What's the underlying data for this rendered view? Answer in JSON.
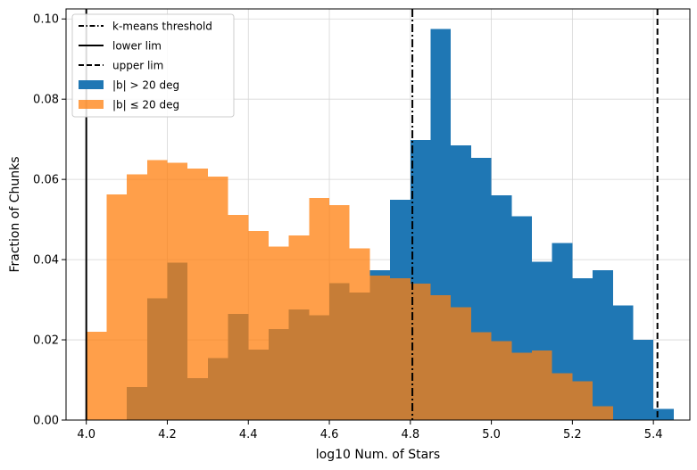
{
  "chart_data": {
    "type": "histogram",
    "title": "",
    "xlabel": "log10 Num. of Stars",
    "ylabel": "Fraction of Chunks",
    "xlim": [
      3.95,
      5.49
    ],
    "ylim": [
      0.0,
      0.1025
    ],
    "xticks": [
      4.0,
      4.2,
      4.4,
      4.6,
      4.8,
      5.0,
      5.2,
      5.4
    ],
    "xtick_labels": [
      "4.0",
      "4.2",
      "4.4",
      "4.6",
      "4.8",
      "5.0",
      "5.2",
      "5.4"
    ],
    "yticks": [
      0.0,
      0.02,
      0.04,
      0.06,
      0.08,
      0.1
    ],
    "ytick_labels": [
      "0.00",
      "0.02",
      "0.04",
      "0.06",
      "0.08",
      "0.10"
    ],
    "grid": true,
    "bin_width": 0.05,
    "series": [
      {
        "name": "|b| > 20 deg",
        "color": "#1f77b4",
        "alpha": 1.0,
        "bin_starts": [
          4.1,
          4.15,
          4.2,
          4.25,
          4.3,
          4.35,
          4.4,
          4.45,
          4.5,
          4.55,
          4.6,
          4.65,
          4.7,
          4.75,
          4.8,
          4.85,
          4.9,
          4.95,
          5.0,
          5.05,
          5.1,
          5.15,
          5.2,
          5.25,
          5.3,
          5.35,
          5.4
        ],
        "values": [
          0.0082,
          0.0303,
          0.0392,
          0.0104,
          0.0154,
          0.0265,
          0.0176,
          0.0227,
          0.0276,
          0.0261,
          0.0341,
          0.0318,
          0.0373,
          0.0549,
          0.0698,
          0.0975,
          0.0685,
          0.0654,
          0.056,
          0.0508,
          0.0395,
          0.0441,
          0.0354,
          0.0373,
          0.0286,
          0.02,
          0.0028
        ]
      },
      {
        "name": "|b| ≤ 20 deg",
        "color": "#ff7f0e",
        "alpha": 0.75,
        "bin_starts": [
          4.0,
          4.05,
          4.1,
          4.15,
          4.2,
          4.25,
          4.3,
          4.35,
          4.4,
          4.45,
          4.5,
          4.55,
          4.6,
          4.65,
          4.7,
          4.75,
          4.8,
          4.85,
          4.9,
          4.95,
          5.0,
          5.05,
          5.1,
          5.15,
          5.2,
          5.25
        ],
        "values": [
          0.022,
          0.0562,
          0.0613,
          0.0648,
          0.0641,
          0.0627,
          0.0607,
          0.0511,
          0.0471,
          0.0432,
          0.046,
          0.0554,
          0.0536,
          0.0428,
          0.036,
          0.0353,
          0.034,
          0.0311,
          0.0281,
          0.0219,
          0.0197,
          0.0168,
          0.0173,
          0.0117,
          0.0097,
          0.0035
        ]
      }
    ],
    "vlines": [
      {
        "name": "k-means threshold",
        "x": 4.805,
        "style": "dashdot",
        "color": "#000000"
      },
      {
        "name": "lower lim",
        "x": 4.0,
        "style": "solid",
        "color": "#000000"
      },
      {
        "name": "upper lim",
        "x": 5.41,
        "style": "dashed",
        "color": "#000000"
      }
    ],
    "legend": {
      "placement": "upper-left",
      "entries": [
        {
          "label": "k-means threshold",
          "kind": "line",
          "style": "dashdot"
        },
        {
          "label": "lower lim",
          "kind": "line",
          "style": "solid"
        },
        {
          "label": "upper lim",
          "kind": "line",
          "style": "dashed"
        },
        {
          "label": "|b| > 20 deg",
          "kind": "patch",
          "color": "#1f77b4"
        },
        {
          "label": "|b|  ≤  20 deg",
          "kind": "patch",
          "color": "#ff7f0e"
        }
      ]
    }
  }
}
